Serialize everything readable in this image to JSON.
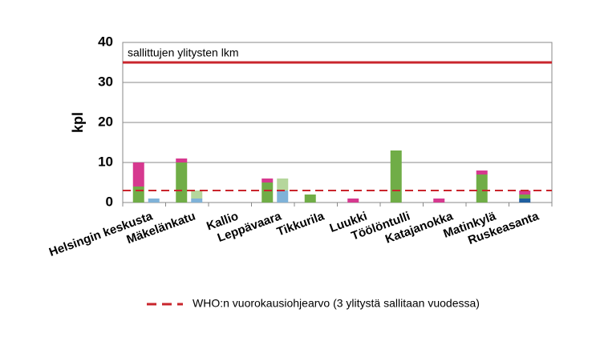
{
  "chart_data": {
    "type": "bar",
    "y_label": "kpl",
    "categories": [
      "Helsingin keskusta",
      "Mäkelänkatu",
      "Kallio",
      "Leppävaara",
      "Tikkurila",
      "Luukki",
      "Töölöntulli",
      "Katajanokka",
      "Matinkylä",
      "Ruskeasanta"
    ],
    "series": [
      {
        "color": "#1f5f9f",
        "stack": "left",
        "values": [
          null,
          null,
          null,
          null,
          null,
          null,
          null,
          null,
          null,
          1
        ]
      },
      {
        "color": "#70ad47",
        "stack": "left",
        "values": [
          4,
          10,
          null,
          5,
          2,
          null,
          13,
          null,
          7,
          1
        ]
      },
      {
        "color": "#d6398f",
        "stack": "left",
        "values": [
          6,
          1,
          null,
          1,
          null,
          1,
          null,
          1,
          1,
          1
        ]
      },
      {
        "color": "#7fb2d8",
        "stack": "right",
        "values": [
          1,
          1,
          null,
          3,
          null,
          null,
          null,
          null,
          null,
          null
        ]
      },
      {
        "color": "#b5d69c",
        "stack": "right",
        "values": [
          null,
          2,
          null,
          3,
          null,
          null,
          null,
          null,
          null,
          null
        ]
      }
    ],
    "ylim": [
      0,
      40
    ],
    "yticks": [
      0,
      10,
      20,
      30,
      40
    ],
    "grid": true,
    "reference_lines": [
      {
        "value": 35,
        "label": "sallittujen ylitysten lkm",
        "color": "#c9252c",
        "style": "solid"
      },
      {
        "value": 3,
        "label": "WHO:n vuorokausiohjearvo (3 ylitystä sallitaan vuodessa)",
        "color": "#c9252c",
        "style": "dashed"
      }
    ]
  }
}
